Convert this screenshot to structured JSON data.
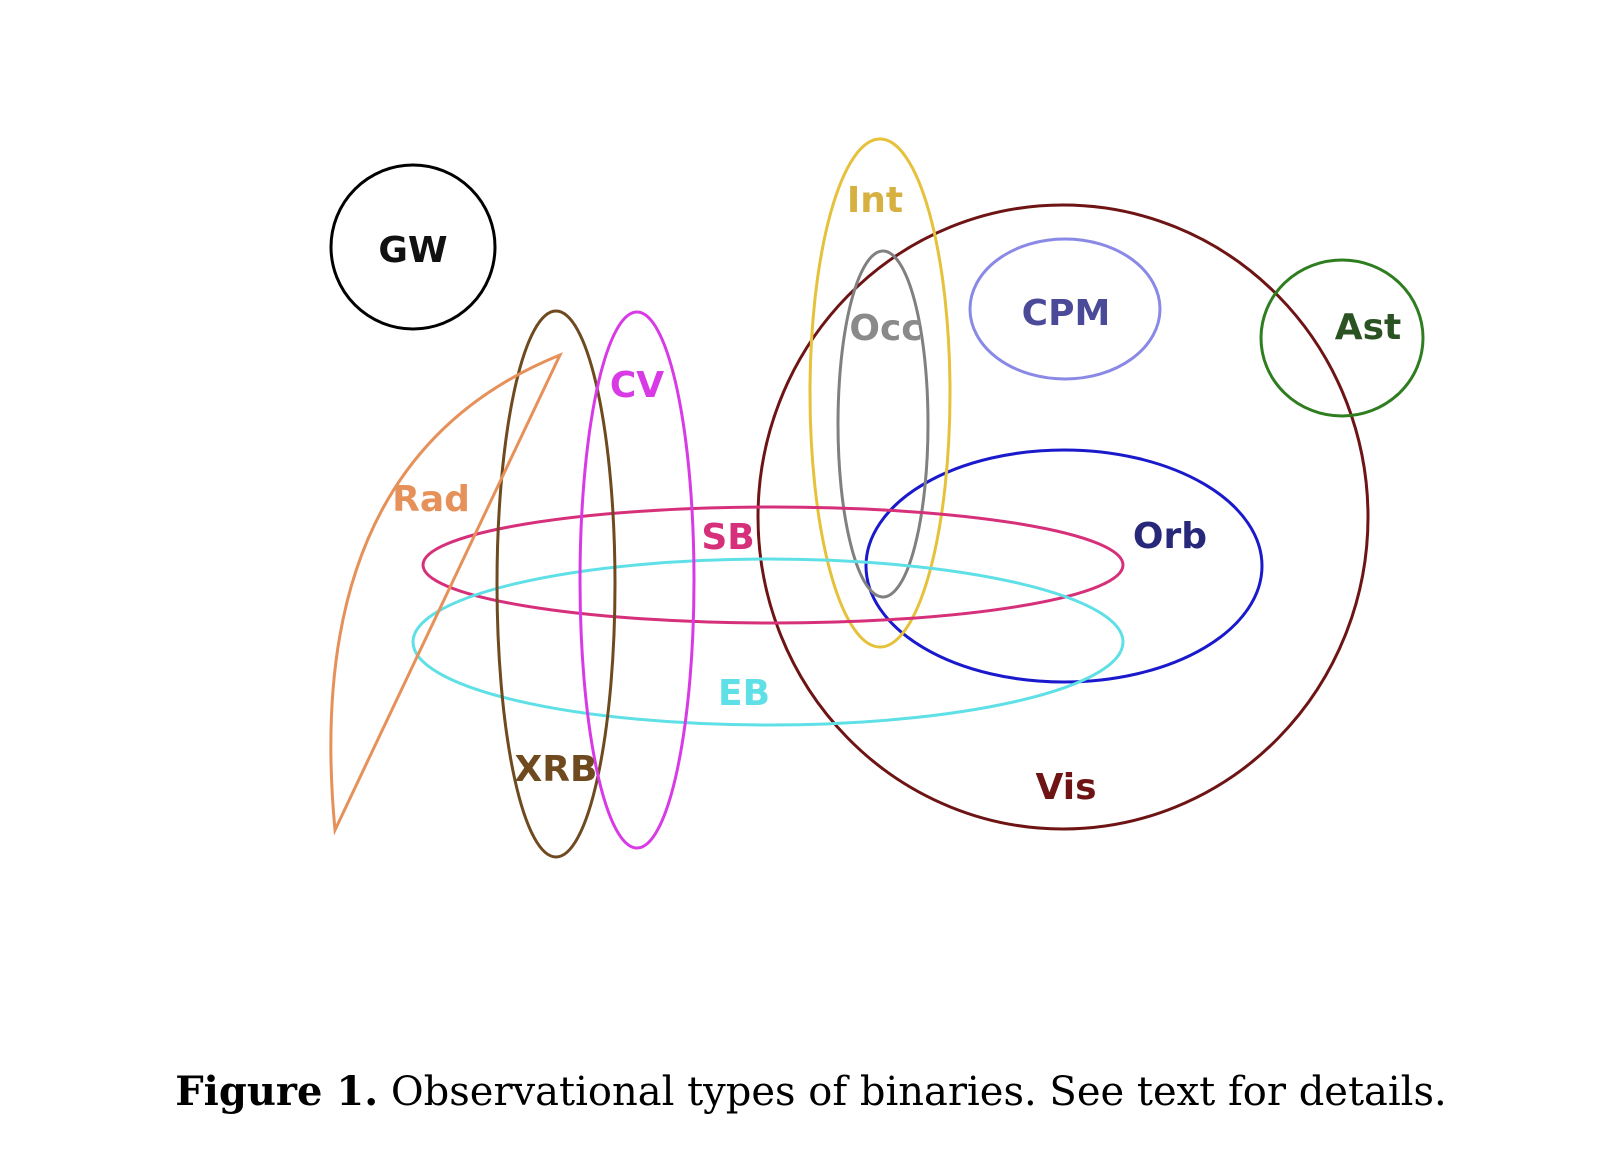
{
  "diagram": {
    "sets": {
      "gw": {
        "label": "GW",
        "color": "#000000"
      },
      "int": {
        "label": "Int",
        "color": "#e6c13b"
      },
      "occ": {
        "label": "Occ",
        "color": "#808080"
      },
      "cpm": {
        "label": "CPM",
        "color": "#8a8ae6"
      },
      "ast": {
        "label": "Ast",
        "color": "#2e7d1f"
      },
      "cv": {
        "label": "CV",
        "color": "#d83ae6"
      },
      "rad": {
        "label": "Rad",
        "color": "#e6915a"
      },
      "sb": {
        "label": "SB",
        "color": "#d6307a"
      },
      "orb": {
        "label": "Orb",
        "color": "#1a1acc"
      },
      "eb": {
        "label": "EB",
        "color": "#5fe0e6"
      },
      "xrb": {
        "label": "XRB",
        "color": "#6e4a1e"
      },
      "vis": {
        "label": "Vis",
        "color": "#6e1414"
      }
    },
    "label_colors": {
      "cpm": "#4a4a99",
      "ast": "#2a5222",
      "orb": "#28287a",
      "vis": "#6e1414",
      "int": "#d6b040",
      "occ": "#8a8a8a",
      "cv": "#d83ae6",
      "rad": "#e6915a",
      "sb": "#d6307a",
      "eb": "#5fe0e6",
      "xrb": "#6e4a1e",
      "gw": "#111111"
    }
  },
  "caption": {
    "figure_number": "Figure 1.",
    "text": " Observational types of binaries. See text for details."
  }
}
